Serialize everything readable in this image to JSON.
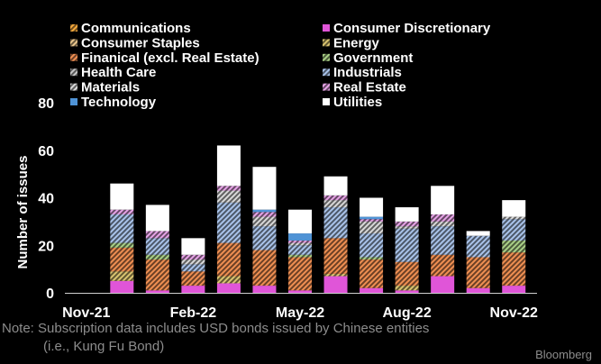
{
  "chart_data": {
    "type": "bar",
    "stacked": true,
    "ylabel": "Number of issues",
    "ylim": [
      0,
      80
    ],
    "yticks": [
      0,
      20,
      40,
      60,
      80
    ],
    "xtick_labels": [
      "Nov-21",
      "Feb-22",
      "May-22",
      "Aug-22",
      "Nov-22"
    ],
    "xtick_indices": [
      0,
      3,
      6,
      9,
      12
    ],
    "categories": [
      "Nov-21",
      "Dec-21",
      "Jan-22",
      "Feb-22",
      "Mar-22",
      "Apr-22",
      "May-22",
      "Jun-22",
      "Jul-22",
      "Aug-22",
      "Sep-22",
      "Oct-22",
      "Nov-22"
    ],
    "series": [
      {
        "name": "Communications",
        "color": "#f4a93d",
        "values": [
          0,
          0,
          0,
          0,
          0,
          0,
          0,
          0,
          0,
          0,
          0,
          0,
          0
        ]
      },
      {
        "name": "Consumer Discretionary",
        "color": "#e055d8",
        "values": [
          0,
          5,
          1,
          3,
          4,
          3,
          1,
          7,
          2,
          1,
          7,
          2,
          3
        ]
      },
      {
        "name": "Consumer Staples",
        "color": "#e9c58c",
        "values": [
          0,
          0,
          0,
          0,
          0,
          0,
          0,
          0,
          0,
          0,
          0,
          0,
          0
        ]
      },
      {
        "name": "Energy",
        "color": "#d9c470",
        "values": [
          0,
          4,
          0,
          0,
          3,
          0,
          0,
          1,
          0,
          2,
          0,
          0,
          0
        ]
      },
      {
        "name": "Finanical (excl. Real Estate)",
        "color": "#ef8f52",
        "values": [
          0,
          10,
          13,
          6,
          14,
          15,
          14,
          15,
          12,
          10,
          9,
          13,
          14
        ]
      },
      {
        "name": "Government",
        "color": "#a9cf86",
        "values": [
          0,
          2,
          2,
          0,
          0,
          0,
          1,
          0,
          1,
          0,
          0,
          0,
          5
        ]
      },
      {
        "name": "Health Care",
        "color": "#c4c4c4",
        "values": [
          0,
          0,
          0,
          0,
          0,
          0,
          0,
          0,
          0,
          0,
          0,
          0,
          0
        ]
      },
      {
        "name": "Industrials",
        "color": "#a9c3ea",
        "values": [
          0,
          12,
          7,
          3,
          17,
          10,
          4,
          13,
          10,
          14,
          12,
          9,
          9
        ]
      },
      {
        "name": "Materials",
        "color": "#d8d8d8",
        "values": [
          0,
          0,
          0,
          2,
          5,
          4,
          1,
          3,
          5,
          1,
          2,
          0,
          1
        ]
      },
      {
        "name": "Real Estate",
        "color": "#e6a3e6",
        "values": [
          0,
          2,
          3,
          2,
          2,
          2,
          1,
          2,
          1,
          2,
          3,
          0,
          0
        ]
      },
      {
        "name": "Technology",
        "color": "#4f93d6",
        "values": [
          0,
          0,
          0,
          0,
          0,
          1,
          3,
          0,
          1,
          0,
          0,
          0,
          0
        ]
      },
      {
        "name": "Utilities",
        "color": "#ffffff",
        "values": [
          0,
          11,
          11,
          7,
          17,
          18,
          10,
          8,
          8,
          6,
          12,
          2,
          7
        ]
      }
    ]
  },
  "note": {
    "line1": "Note: Subscription data includes USD bonds issued by Chinese entities",
    "line2": "(i.e., Kung Fu Bond)"
  },
  "brand": "Bloomberg"
}
